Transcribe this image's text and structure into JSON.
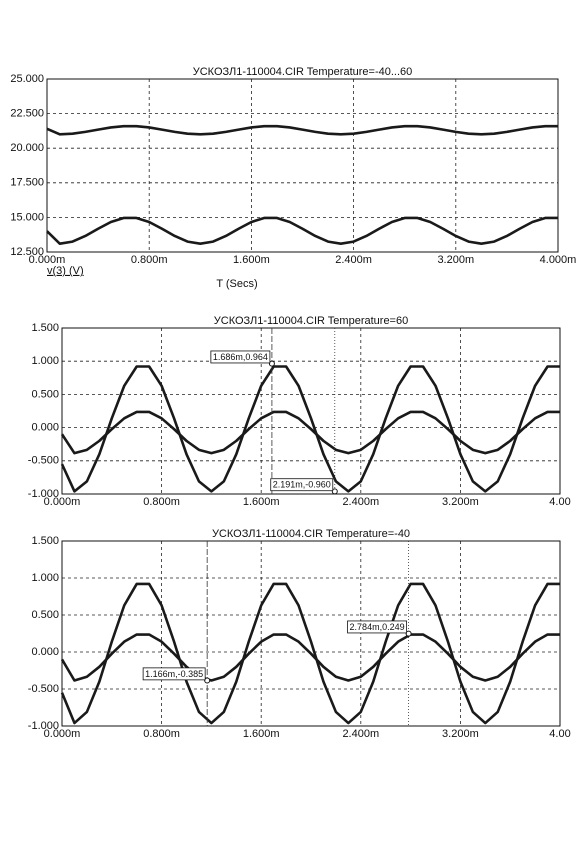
{
  "chart_data": [
    {
      "type": "line",
      "title": "УСКОЗЛ1-110004.CIR Temperature=-40...60",
      "xlabel": "T (Secs)",
      "trace_label": "v(3) (V)",
      "xlim": [
        0,
        4.0
      ],
      "ylim": [
        12.5,
        25
      ],
      "grid": true,
      "xticks": [
        {
          "value": 0,
          "label": "0.000m"
        },
        {
          "value": 0.8,
          "label": "0.800m"
        },
        {
          "value": 1.6,
          "label": "1.600m"
        },
        {
          "value": 2.4,
          "label": "2.400m"
        },
        {
          "value": 3.2,
          "label": "3.200m"
        },
        {
          "value": 4.0,
          "label": "4.000m"
        }
      ],
      "yticks": [
        {
          "value": 12.5,
          "label": "12.500"
        },
        {
          "value": 15,
          "label": "15.000"
        },
        {
          "value": 17.5,
          "label": "17.500"
        },
        {
          "value": 20,
          "label": "20.000"
        },
        {
          "value": 22.5,
          "label": "22.500"
        },
        {
          "value": 25,
          "label": "25.000"
        }
      ],
      "x": [
        0,
        0.1,
        0.2,
        0.3,
        0.4,
        0.5,
        0.6,
        0.7,
        0.8,
        0.9,
        1.0,
        1.1,
        1.2,
        1.3,
        1.4,
        1.5,
        1.6,
        1.7,
        1.8,
        1.9,
        2.0,
        2.1,
        2.2,
        2.3,
        2.4,
        2.5,
        2.6,
        2.7,
        2.8,
        2.9,
        3.0,
        3.1,
        3.2,
        3.3,
        3.4,
        3.5,
        3.6,
        3.7,
        3.8,
        3.9,
        4.0
      ],
      "series": [
        {
          "color": "#1a1a1a",
          "values": [
            21.4,
            21.0,
            21.05,
            21.18,
            21.34,
            21.5,
            21.59,
            21.59,
            21.5,
            21.34,
            21.18,
            21.05,
            21.0,
            21.05,
            21.18,
            21.34,
            21.5,
            21.59,
            21.59,
            21.5,
            21.34,
            21.18,
            21.05,
            21.0,
            21.05,
            21.18,
            21.34,
            21.5,
            21.59,
            21.59,
            21.5,
            21.34,
            21.18,
            21.05,
            21.0,
            21.05,
            21.18,
            21.34,
            21.5,
            21.59,
            21.59
          ]
        },
        {
          "color": "#1a1a1a",
          "values": [
            14.0,
            13.1,
            13.25,
            13.66,
            14.18,
            14.67,
            14.96,
            14.96,
            14.67,
            14.18,
            13.66,
            13.25,
            13.1,
            13.25,
            13.66,
            14.18,
            14.67,
            14.96,
            14.96,
            14.67,
            14.18,
            13.66,
            13.25,
            13.1,
            13.25,
            13.66,
            14.18,
            14.67,
            14.96,
            14.96,
            14.67,
            14.18,
            13.66,
            13.25,
            13.1,
            13.25,
            13.66,
            14.18,
            14.67,
            14.96,
            14.96
          ]
        }
      ]
    },
    {
      "type": "line",
      "title": "УСКОЗЛ1-110004.CIR Temperature=60",
      "xlim": [
        0,
        4.0
      ],
      "ylim": [
        -1,
        1.5
      ],
      "grid": true,
      "xticks": [
        {
          "value": 0,
          "label": "0.000m"
        },
        {
          "value": 0.8,
          "label": "0.800m"
        },
        {
          "value": 1.6,
          "label": "1.600m"
        },
        {
          "value": 2.4,
          "label": "2.400m"
        },
        {
          "value": 3.2,
          "label": "3.200m"
        },
        {
          "value": 4.0,
          "label": "4.00"
        }
      ],
      "yticks": [
        {
          "value": -1,
          "label": "-1.000"
        },
        {
          "value": -0.5,
          "label": "-0.500"
        },
        {
          "value": 0,
          "label": "0.000"
        },
        {
          "value": 0.5,
          "label": "0.500"
        },
        {
          "value": 1,
          "label": "1.000"
        },
        {
          "value": 1.5,
          "label": "1.500"
        }
      ],
      "x": [
        0,
        0.1,
        0.2,
        0.3,
        0.4,
        0.5,
        0.6,
        0.7,
        0.8,
        0.9,
        1.0,
        1.1,
        1.2,
        1.3,
        1.4,
        1.5,
        1.6,
        1.7,
        1.8,
        1.9,
        2.0,
        2.1,
        2.2,
        2.3,
        2.4,
        2.5,
        2.6,
        2.7,
        2.8,
        2.9,
        3.0,
        3.1,
        3.2,
        3.3,
        3.4,
        3.5,
        3.6,
        3.7,
        3.8,
        3.9,
        4.0
      ],
      "series": [
        {
          "color": "#1a1a1a",
          "values": [
            -0.55,
            -0.96,
            -0.81,
            -0.4,
            0.14,
            0.63,
            0.92,
            0.92,
            0.63,
            0.14,
            -0.4,
            -0.81,
            -0.96,
            -0.81,
            -0.4,
            0.14,
            0.63,
            0.92,
            0.92,
            0.63,
            0.14,
            -0.4,
            -0.81,
            -0.96,
            -0.81,
            -0.4,
            0.14,
            0.63,
            0.92,
            0.92,
            0.63,
            0.14,
            -0.4,
            -0.81,
            -0.96,
            -0.81,
            -0.4,
            0.14,
            0.63,
            0.92,
            0.92
          ]
        },
        {
          "color": "#1a1a1a",
          "values": [
            -0.1,
            -0.385,
            -0.335,
            -0.2,
            -0.023,
            0.14,
            0.236,
            0.236,
            0.14,
            -0.023,
            -0.2,
            -0.335,
            -0.385,
            -0.335,
            -0.2,
            -0.023,
            0.14,
            0.236,
            0.236,
            0.14,
            -0.023,
            -0.2,
            -0.335,
            -0.385,
            -0.335,
            -0.2,
            -0.023,
            0.14,
            0.236,
            0.236,
            0.14,
            -0.023,
            -0.2,
            -0.335,
            -0.385,
            -0.335,
            -0.2,
            -0.023,
            0.14,
            0.236,
            0.236
          ]
        }
      ],
      "annotations": [
        {
          "x": 1.686,
          "y": 0.964,
          "label": "1.686m,0.964"
        },
        {
          "x": 2.191,
          "y": -0.96,
          "label": "2.191m,-0.960"
        }
      ]
    },
    {
      "type": "line",
      "title": "УСКОЗЛ1-110004.CIR Temperature=-40",
      "xlim": [
        0,
        4.0
      ],
      "ylim": [
        -1,
        1.5
      ],
      "grid": true,
      "xticks": [
        {
          "value": 0,
          "label": "0.000m"
        },
        {
          "value": 0.8,
          "label": "0.800m"
        },
        {
          "value": 1.6,
          "label": "1.600m"
        },
        {
          "value": 2.4,
          "label": "2.400m"
        },
        {
          "value": 3.2,
          "label": "3.200m"
        },
        {
          "value": 4.0,
          "label": "4.00"
        }
      ],
      "yticks": [
        {
          "value": -1,
          "label": "-1.000"
        },
        {
          "value": -0.5,
          "label": "-0.500"
        },
        {
          "value": 0,
          "label": "0.000"
        },
        {
          "value": 0.5,
          "label": "0.500"
        },
        {
          "value": 1,
          "label": "1.000"
        },
        {
          "value": 1.5,
          "label": "1.500"
        }
      ],
      "x": [
        0,
        0.1,
        0.2,
        0.3,
        0.4,
        0.5,
        0.6,
        0.7,
        0.8,
        0.9,
        1.0,
        1.1,
        1.2,
        1.3,
        1.4,
        1.5,
        1.6,
        1.7,
        1.8,
        1.9,
        2.0,
        2.1,
        2.2,
        2.3,
        2.4,
        2.5,
        2.6,
        2.7,
        2.8,
        2.9,
        3.0,
        3.1,
        3.2,
        3.3,
        3.4,
        3.5,
        3.6,
        3.7,
        3.8,
        3.9,
        4.0
      ],
      "series": [
        {
          "color": "#1a1a1a",
          "values": [
            -0.55,
            -0.96,
            -0.81,
            -0.4,
            0.14,
            0.63,
            0.92,
            0.92,
            0.63,
            0.14,
            -0.4,
            -0.81,
            -0.96,
            -0.81,
            -0.4,
            0.14,
            0.63,
            0.92,
            0.92,
            0.63,
            0.14,
            -0.4,
            -0.81,
            -0.96,
            -0.81,
            -0.4,
            0.14,
            0.63,
            0.92,
            0.92,
            0.63,
            0.14,
            -0.4,
            -0.81,
            -0.96,
            -0.81,
            -0.4,
            0.14,
            0.63,
            0.92,
            0.92
          ]
        },
        {
          "color": "#1a1a1a",
          "values": [
            -0.1,
            -0.385,
            -0.335,
            -0.2,
            -0.023,
            0.14,
            0.236,
            0.236,
            0.14,
            -0.023,
            -0.2,
            -0.335,
            -0.385,
            -0.335,
            -0.2,
            -0.023,
            0.14,
            0.236,
            0.236,
            0.14,
            -0.023,
            -0.2,
            -0.335,
            -0.385,
            -0.335,
            -0.2,
            -0.023,
            0.14,
            0.236,
            0.236,
            0.14,
            -0.023,
            -0.2,
            -0.335,
            -0.385,
            -0.335,
            -0.2,
            -0.023,
            0.14,
            0.236,
            0.236
          ]
        }
      ],
      "annotations": [
        {
          "x": 1.166,
          "y": -0.385,
          "label": "1.166m,-0.385"
        },
        {
          "x": 2.784,
          "y": 0.249,
          "label": "2.784m,0.249"
        }
      ]
    }
  ]
}
